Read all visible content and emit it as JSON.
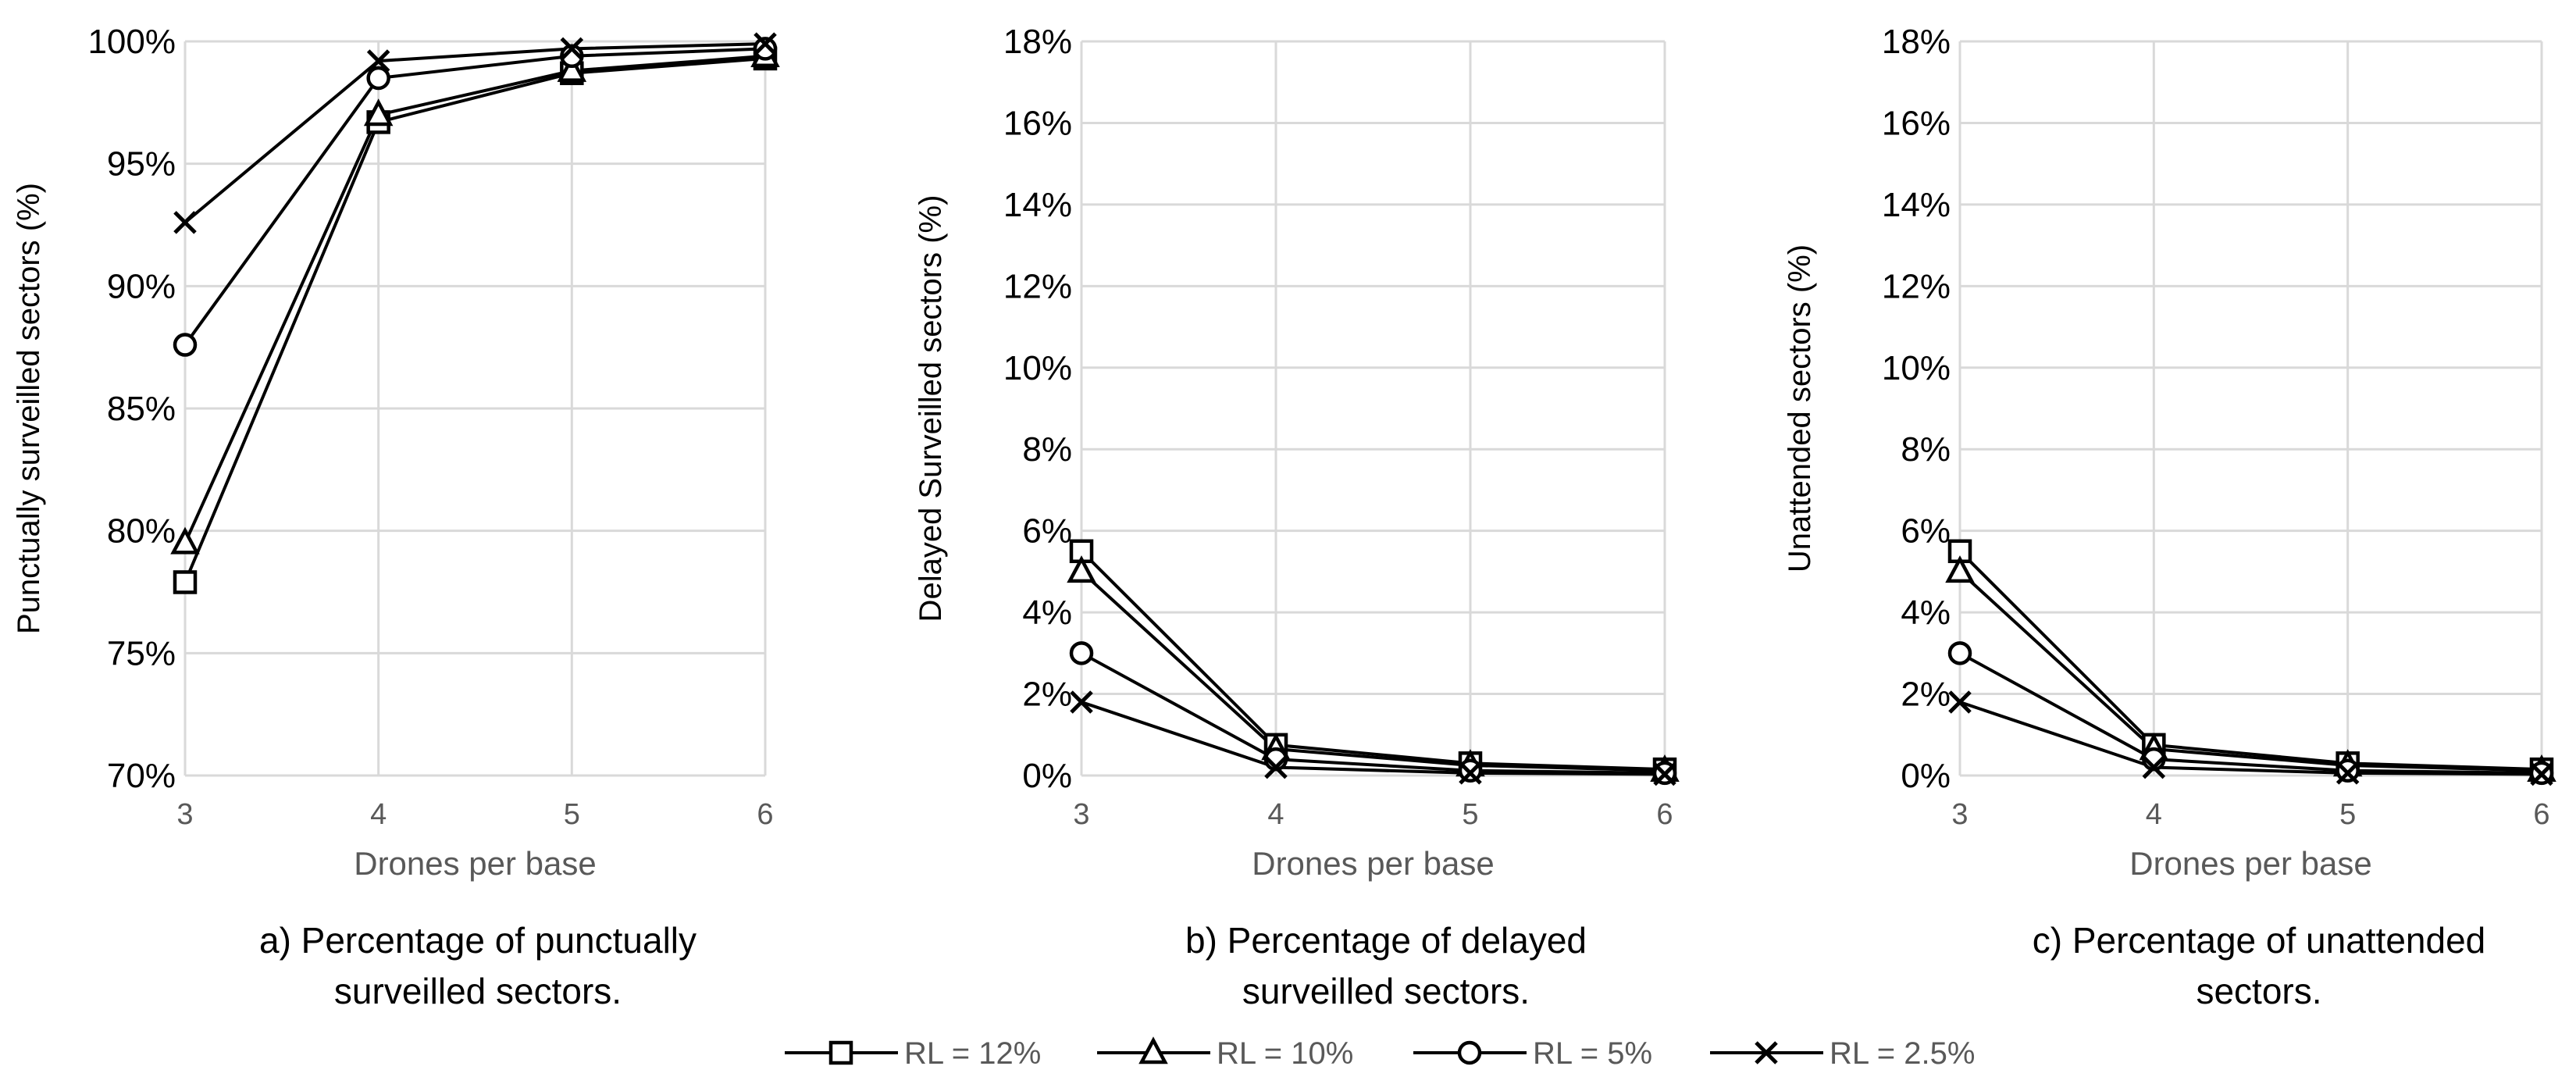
{
  "chart_data": [
    {
      "type": "line",
      "panel": "a",
      "title": "",
      "caption": [
        "a) Percentage of punctually",
        "surveilled sectors."
      ],
      "xlabel": "Drones per base",
      "ylabel": "Punctually surveilled sectors (%)",
      "x": [
        3,
        4,
        5,
        6
      ],
      "ylim": [
        70,
        100
      ],
      "yticks": [
        70,
        75,
        80,
        85,
        90,
        95,
        100
      ],
      "ytick_labels": [
        "70%",
        "75%",
        "80%",
        "85%",
        "90%",
        "95%",
        "100%"
      ],
      "grid": true,
      "series": [
        {
          "name": "RL = 12%",
          "marker": "square",
          "values": [
            77.9,
            96.7,
            98.7,
            99.3
          ]
        },
        {
          "name": "RL = 10%",
          "marker": "triangle",
          "values": [
            79.5,
            97.0,
            98.8,
            99.4
          ]
        },
        {
          "name": "RL = 5%",
          "marker": "circle",
          "values": [
            87.6,
            98.5,
            99.4,
            99.7
          ]
        },
        {
          "name": "RL = 2.5%",
          "marker": "x",
          "values": [
            92.6,
            99.2,
            99.7,
            99.9
          ]
        }
      ]
    },
    {
      "type": "line",
      "panel": "b",
      "title": "",
      "caption": [
        "b) Percentage of delayed",
        "surveilled sectors."
      ],
      "xlabel": "Drones per base",
      "ylabel": "Delayed Surveilled sectors (%)",
      "x": [
        3,
        4,
        5,
        6
      ],
      "ylim": [
        0,
        18
      ],
      "yticks": [
        0,
        2,
        4,
        6,
        8,
        10,
        12,
        14,
        16,
        18
      ],
      "ytick_labels": [
        "0%",
        "2%",
        "4%",
        "6%",
        "8%",
        "10%",
        "12%",
        "14%",
        "16%",
        "18%"
      ],
      "grid": true,
      "series": [
        {
          "name": "RL = 12%",
          "marker": "square",
          "values": [
            5.5,
            0.75,
            0.3,
            0.15
          ]
        },
        {
          "name": "RL = 10%",
          "marker": "triangle",
          "values": [
            5.0,
            0.65,
            0.25,
            0.12
          ]
        },
        {
          "name": "RL = 5%",
          "marker": "circle",
          "values": [
            3.0,
            0.4,
            0.12,
            0.06
          ]
        },
        {
          "name": "RL = 2.5%",
          "marker": "x",
          "values": [
            1.8,
            0.2,
            0.06,
            0.03
          ]
        }
      ]
    },
    {
      "type": "line",
      "panel": "c",
      "title": "",
      "caption": [
        "c) Percentage of unattended",
        "sectors."
      ],
      "xlabel": "Drones per base",
      "ylabel": "Unattended sectors (%)",
      "x": [
        3,
        4,
        5,
        6
      ],
      "ylim": [
        0,
        18
      ],
      "yticks": [
        0,
        2,
        4,
        6,
        8,
        10,
        12,
        14,
        16,
        18
      ],
      "ytick_labels": [
        "0%",
        "2%",
        "4%",
        "6%",
        "8%",
        "10%",
        "12%",
        "14%",
        "16%",
        "18%"
      ],
      "grid": true,
      "series": [
        {
          "name": "RL = 12%",
          "marker": "square",
          "values": [
            5.5,
            0.75,
            0.3,
            0.15
          ]
        },
        {
          "name": "RL = 10%",
          "marker": "triangle",
          "values": [
            5.0,
            0.65,
            0.25,
            0.12
          ]
        },
        {
          "name": "RL = 5%",
          "marker": "circle",
          "values": [
            3.0,
            0.4,
            0.12,
            0.06
          ]
        },
        {
          "name": "RL = 2.5%",
          "marker": "x",
          "values": [
            1.8,
            0.2,
            0.06,
            0.03
          ]
        }
      ]
    }
  ],
  "legend": {
    "placement": "bottom-center",
    "entries": [
      {
        "label": "RL = 12%",
        "marker": "square"
      },
      {
        "label": "RL = 10%",
        "marker": "triangle"
      },
      {
        "label": "RL = 5%",
        "marker": "circle"
      },
      {
        "label": "RL = 2.5%",
        "marker": "x"
      }
    ]
  }
}
